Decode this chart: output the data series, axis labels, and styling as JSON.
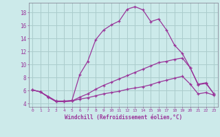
{
  "xlabel": "Windchill (Refroidissement éolien,°C)",
  "bg_color": "#cceaea",
  "grid_color": "#aacccc",
  "line_color": "#993399",
  "spine_color": "#888899",
  "xlim": [
    -0.5,
    23.5
  ],
  "ylim": [
    3.5,
    19.5
  ],
  "xticks": [
    0,
    1,
    2,
    3,
    4,
    5,
    6,
    7,
    8,
    9,
    10,
    11,
    12,
    13,
    14,
    15,
    16,
    17,
    18,
    19,
    20,
    21,
    22,
    23
  ],
  "yticks": [
    4,
    6,
    8,
    10,
    12,
    14,
    16,
    18
  ],
  "line1_x": [
    0,
    1,
    2,
    3,
    4,
    5,
    6,
    7,
    8,
    9,
    10,
    11,
    12,
    13,
    14,
    15,
    16,
    17,
    18,
    19,
    20,
    21,
    22,
    23
  ],
  "line1_y": [
    6.1,
    5.8,
    5.1,
    4.4,
    4.4,
    4.5,
    8.5,
    10.5,
    13.8,
    15.3,
    16.1,
    16.7,
    18.5,
    18.9,
    18.4,
    16.6,
    17.0,
    15.3,
    13.0,
    11.7,
    9.5,
    6.9,
    7.1,
    5.5
  ],
  "line2_x": [
    0,
    1,
    2,
    3,
    4,
    5,
    6,
    7,
    8,
    9,
    10,
    11,
    12,
    13,
    14,
    15,
    16,
    17,
    18,
    19,
    20,
    21,
    22,
    23
  ],
  "line2_y": [
    6.1,
    5.8,
    5.0,
    4.3,
    4.3,
    4.4,
    5.0,
    5.5,
    6.2,
    6.8,
    7.3,
    7.8,
    8.3,
    8.8,
    9.3,
    9.8,
    10.3,
    10.5,
    10.8,
    11.0,
    9.5,
    7.0,
    7.2,
    5.5
  ],
  "line3_x": [
    0,
    1,
    2,
    3,
    4,
    5,
    6,
    7,
    8,
    9,
    10,
    11,
    12,
    13,
    14,
    15,
    16,
    17,
    18,
    19,
    20,
    21,
    22,
    23
  ],
  "line3_y": [
    6.1,
    5.8,
    5.0,
    4.3,
    4.3,
    4.4,
    4.7,
    4.9,
    5.2,
    5.5,
    5.7,
    5.9,
    6.2,
    6.4,
    6.6,
    6.9,
    7.3,
    7.6,
    7.9,
    8.2,
    7.0,
    5.5,
    5.7,
    5.3
  ]
}
